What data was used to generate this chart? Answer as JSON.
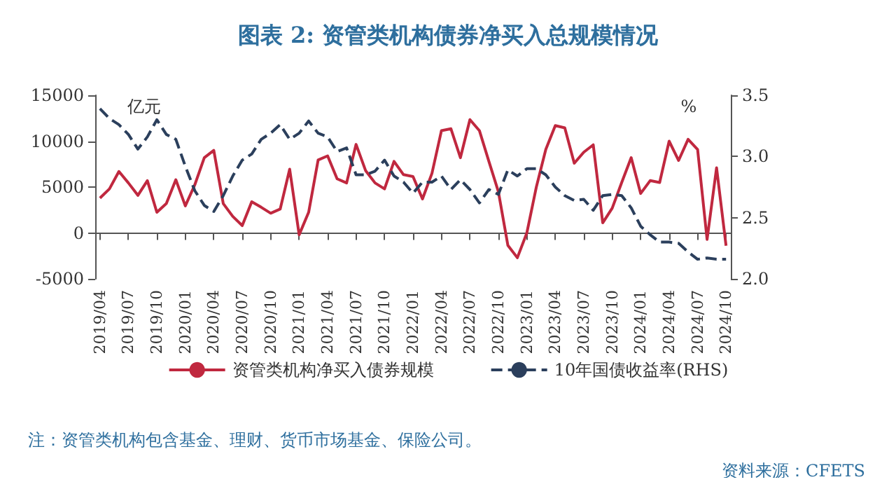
{
  "chart_data": {
    "type": "line",
    "title": "图表 2: 资管类机构债券净买入总规模情况",
    "ylabel": "亿元",
    "y2label": "%",
    "categories": [
      "2019/04",
      null,
      null,
      "2019/07",
      null,
      null,
      "2019/10",
      null,
      null,
      "2020/01",
      null,
      null,
      "2020/04",
      null,
      null,
      "2020/07",
      null,
      null,
      "2020/10",
      null,
      null,
      "2021/01",
      null,
      null,
      "2021/04",
      null,
      null,
      "2021/07",
      null,
      null,
      "2021/10",
      null,
      null,
      "2022/01",
      null,
      null,
      "2022/04",
      null,
      null,
      "2022/07",
      null,
      null,
      "2022/10",
      null,
      null,
      "2023/01",
      null,
      null,
      "2023/04",
      null,
      null,
      "2023/07",
      null,
      null,
      "2023/10",
      null,
      null,
      "2024/01",
      null,
      null,
      "2024/04",
      null,
      null,
      "2024/07",
      null,
      null,
      "2024/10"
    ],
    "series": [
      {
        "name": "资管类机构净买入债券规模",
        "color": "#c0283f",
        "line_style": "solid",
        "values": [
          3800,
          4800,
          6700,
          5450,
          4100,
          5700,
          2250,
          3200,
          5800,
          2950,
          5250,
          8200,
          9000,
          3200,
          1800,
          800,
          3400,
          2800,
          2150,
          2600,
          6950,
          -200,
          2250,
          7950,
          8400,
          5900,
          5450,
          9650,
          6800,
          5450,
          4800,
          7800,
          6350,
          6150,
          3700,
          6500,
          11150,
          11350,
          8200,
          12350,
          11150,
          7800,
          4500,
          -1350,
          -2700,
          0,
          5000,
          9100,
          11700,
          11450,
          7600,
          8800,
          9600,
          1100,
          2700,
          5500,
          8200,
          4300,
          5700,
          5500,
          10000,
          7900,
          10200,
          9100,
          -700,
          7100,
          -1400
        ]
      },
      {
        "name": "10年国债收益率(RHS)",
        "color": "#2b3f5c",
        "line_style": "dashed",
        "axis": "y2",
        "values": [
          3.39,
          3.31,
          3.26,
          3.18,
          3.06,
          3.16,
          3.3,
          3.18,
          3.14,
          2.92,
          2.72,
          2.6,
          2.55,
          2.68,
          2.84,
          2.97,
          3.02,
          3.14,
          3.19,
          3.26,
          3.14,
          3.19,
          3.29,
          3.19,
          3.16,
          3.04,
          3.07,
          2.85,
          2.85,
          2.88,
          2.97,
          2.84,
          2.79,
          2.7,
          2.79,
          2.79,
          2.84,
          2.73,
          2.81,
          2.73,
          2.62,
          2.73,
          2.69,
          2.89,
          2.84,
          2.9,
          2.9,
          2.85,
          2.75,
          2.68,
          2.64,
          2.65,
          2.56,
          2.68,
          2.69,
          2.68,
          2.58,
          2.43,
          2.36,
          2.3,
          2.3,
          2.29,
          2.22,
          2.16,
          2.17,
          2.16,
          2.16
        ]
      }
    ],
    "ylim": [
      -5000,
      15000
    ],
    "yticks": [
      -5000,
      0,
      5000,
      10000,
      15000
    ],
    "y2lim": [
      2.0,
      3.5
    ],
    "y2ticks": [
      {
        "value": 2,
        "label": "2.0"
      },
      2.5,
      {
        "value": 3,
        "label": "3.0"
      },
      3.5
    ],
    "marker": "none",
    "legend": "bottom",
    "annotations": [
      "注：资管类机构包含基金、理财、货币市场基金、保险公司。",
      "资料来源：CFETS"
    ]
  }
}
